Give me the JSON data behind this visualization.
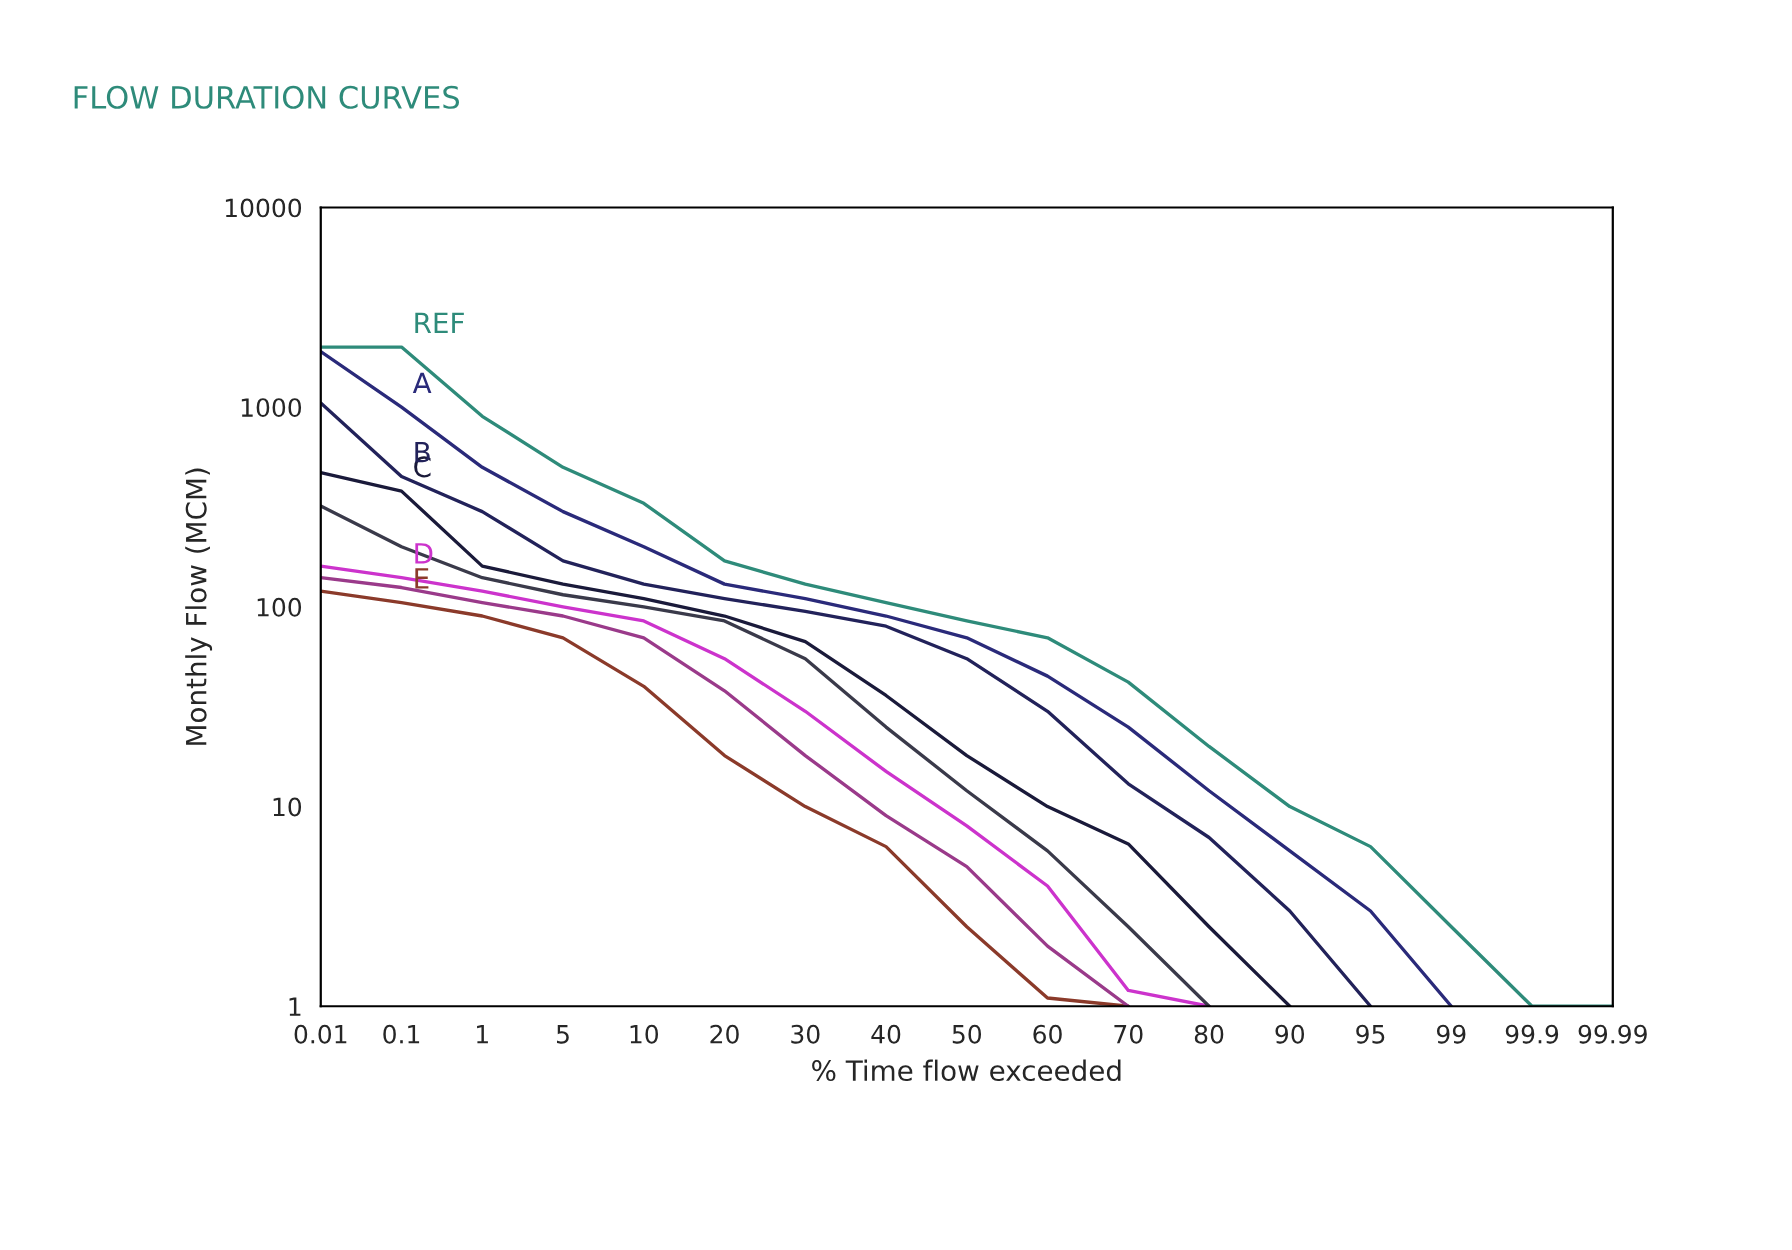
{
  "chart_data": {
    "type": "line",
    "title": "FLOW DURATION CURVES",
    "xlabel": "% Time flow exceeded",
    "ylabel": "Monthly Flow (MCM)",
    "categories": [
      "0.01",
      "0.1",
      "1",
      "5",
      "10",
      "20",
      "30",
      "40",
      "50",
      "60",
      "70",
      "80",
      "90",
      "95",
      "99",
      "99.9",
      "99.99"
    ],
    "log": "y",
    "ylim": [
      1,
      10000
    ],
    "yticks": [
      1,
      10,
      100,
      1000,
      10000
    ],
    "grid": false,
    "legend": false,
    "marker": "none",
    "line_style": "solid",
    "series": [
      {
        "name": "REF",
        "color": "#2e8b7a",
        "values": [
          2000,
          2000,
          900,
          500,
          330,
          170,
          130,
          105,
          85,
          70,
          42,
          20,
          10,
          6.3,
          2.5,
          1,
          1
        ]
      },
      {
        "name": "A",
        "color": "#2a2a7a",
        "values": [
          1900,
          1000,
          500,
          300,
          200,
          130,
          110,
          90,
          70,
          45,
          25,
          12,
          6,
          3,
          1,
          null,
          null
        ]
      },
      {
        "name": "B",
        "color": "#22225a",
        "values": [
          1050,
          450,
          300,
          170,
          130,
          110,
          95,
          80,
          55,
          30,
          13,
          7,
          3,
          1,
          null,
          null,
          null
        ]
      },
      {
        "name": "C",
        "color": "#1a1a3a",
        "values": [
          470,
          380,
          160,
          130,
          110,
          90,
          67,
          36,
          18,
          10,
          6.5,
          2.5,
          1,
          null,
          null,
          null,
          null
        ]
      },
      {
        "color": "#3a3a4a",
        "values": [
          320,
          200,
          140,
          115,
          100,
          85,
          55,
          25,
          12,
          6,
          2.5,
          1,
          null,
          null,
          null,
          null,
          null
        ]
      },
      {
        "name": "D",
        "color": "#cc33cc",
        "values": [
          160,
          140,
          120,
          100,
          85,
          55,
          30,
          15,
          8,
          4,
          1.2,
          1,
          null,
          null,
          null,
          null,
          null
        ]
      },
      {
        "color": "#9a3a8a",
        "values": [
          140,
          125,
          105,
          90,
          70,
          38,
          18,
          9,
          5,
          2,
          1,
          null,
          null,
          null,
          null,
          null,
          null
        ]
      },
      {
        "name": "E",
        "color": "#8b3a2a",
        "values": [
          120,
          105,
          90,
          70,
          40,
          18,
          10,
          6.3,
          2.5,
          1.1,
          1,
          null,
          null,
          null,
          null,
          null,
          null
        ]
      }
    ]
  }
}
